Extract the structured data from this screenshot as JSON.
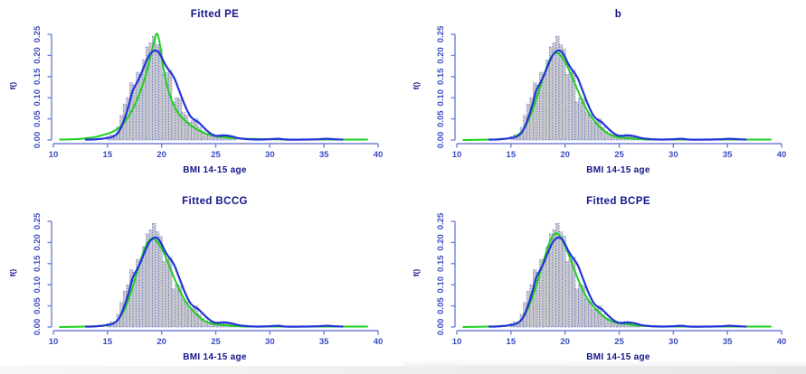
{
  "figure": {
    "background": "#ffffff",
    "colors": {
      "title_text": "#14148c",
      "tick_label": "#3b4cc0",
      "axis_line": "#7080d8",
      "hist_fill": "#c9c9c9",
      "hist_border": "#5565d2",
      "fitted_green": "#1ecf1e",
      "density_blue": "#2433d8"
    }
  },
  "chart_data": {
    "type": "histogram",
    "layout": "2x2-panel-grid",
    "xlabel": "BMI 14-15 age",
    "ylabel": "f()",
    "xlim": [
      10,
      40
    ],
    "ylim": [
      0,
      0.25
    ],
    "grid": "off",
    "legend": "none",
    "x_tick_values": [
      10,
      15,
      20,
      25,
      30,
      35,
      40
    ],
    "x_tick_labels": [
      "10",
      "15",
      "20",
      "25",
      "30",
      "35",
      "40"
    ],
    "y_tick_values": [
      0,
      0.05,
      0.1,
      0.15,
      0.2,
      0.25
    ],
    "y_tick_labels": [
      "0.00",
      "0.05",
      "0.10",
      "0.15",
      "0.20",
      "0.25"
    ],
    "histogram": {
      "note": "shared sample histogram of BMI at age 14-15, gray bars with dotted blue borders",
      "bin_width": 0.3,
      "bins": [
        [
          15.1,
          0.008
        ],
        [
          15.4,
          0.012
        ],
        [
          15.7,
          0.008
        ],
        [
          16.0,
          0.03
        ],
        [
          16.3,
          0.058
        ],
        [
          16.6,
          0.085
        ],
        [
          16.9,
          0.1
        ],
        [
          17.2,
          0.135
        ],
        [
          17.5,
          0.13
        ],
        [
          17.8,
          0.16
        ],
        [
          18.1,
          0.155
        ],
        [
          18.4,
          0.19
        ],
        [
          18.7,
          0.22
        ],
        [
          19.0,
          0.23
        ],
        [
          19.3,
          0.245
        ],
        [
          19.6,
          0.225
        ],
        [
          19.9,
          0.215
        ],
        [
          20.2,
          0.155
        ],
        [
          20.5,
          0.16
        ],
        [
          20.8,
          0.165
        ],
        [
          21.1,
          0.09
        ],
        [
          21.4,
          0.1
        ],
        [
          21.7,
          0.098
        ],
        [
          22.0,
          0.065
        ],
        [
          22.3,
          0.058
        ],
        [
          22.6,
          0.042
        ],
        [
          22.9,
          0.045
        ],
        [
          23.2,
          0.05
        ],
        [
          23.5,
          0.03
        ],
        [
          23.8,
          0.02
        ],
        [
          24.1,
          0.015
        ],
        [
          24.4,
          0.012
        ],
        [
          24.7,
          0.01
        ],
        [
          25.0,
          0.01
        ],
        [
          25.3,
          0.012
        ],
        [
          25.6,
          0.013
        ],
        [
          25.9,
          0.01
        ],
        [
          26.2,
          0.008
        ],
        [
          26.5,
          0.006
        ],
        [
          26.8,
          0.004
        ],
        [
          30.6,
          0.004
        ],
        [
          30.9,
          0.003
        ],
        [
          35.0,
          0.004
        ],
        [
          35.3,
          0.003
        ]
      ]
    },
    "density_blue": {
      "name": "sample density (blue line, shared across panels)",
      "color": "#2433d8",
      "points": [
        [
          13.0,
          0.001
        ],
        [
          13.5,
          0.001
        ],
        [
          14.0,
          0.002
        ],
        [
          14.5,
          0.003
        ],
        [
          15.0,
          0.005
        ],
        [
          15.5,
          0.008
        ],
        [
          16.0,
          0.018
        ],
        [
          16.5,
          0.045
        ],
        [
          17.0,
          0.085
        ],
        [
          17.3,
          0.115
        ],
        [
          17.6,
          0.13
        ],
        [
          18.0,
          0.15
        ],
        [
          18.4,
          0.175
        ],
        [
          18.8,
          0.198
        ],
        [
          19.1,
          0.208
        ],
        [
          19.4,
          0.212
        ],
        [
          19.7,
          0.208
        ],
        [
          20.0,
          0.196
        ],
        [
          20.3,
          0.18
        ],
        [
          20.6,
          0.168
        ],
        [
          20.9,
          0.158
        ],
        [
          21.2,
          0.145
        ],
        [
          21.5,
          0.125
        ],
        [
          21.8,
          0.105
        ],
        [
          22.1,
          0.085
        ],
        [
          22.4,
          0.068
        ],
        [
          22.7,
          0.055
        ],
        [
          23.0,
          0.048
        ],
        [
          23.4,
          0.042
        ],
        [
          23.8,
          0.032
        ],
        [
          24.2,
          0.022
        ],
        [
          24.6,
          0.014
        ],
        [
          25.0,
          0.01
        ],
        [
          25.4,
          0.01
        ],
        [
          25.8,
          0.011
        ],
        [
          26.2,
          0.01
        ],
        [
          26.6,
          0.008
        ],
        [
          27.0,
          0.005
        ],
        [
          27.5,
          0.003
        ],
        [
          28.0,
          0.002
        ],
        [
          29.0,
          0.001
        ],
        [
          30.0,
          0.002
        ],
        [
          30.8,
          0.003
        ],
        [
          31.5,
          0.001
        ],
        [
          33.0,
          0.001
        ],
        [
          34.5,
          0.002
        ],
        [
          35.2,
          0.003
        ],
        [
          36.0,
          0.002
        ],
        [
          36.7,
          0.001
        ]
      ]
    },
    "panels": [
      {
        "title": "Fitted PE",
        "fitted_green": {
          "name": "fitted PE density (green line)",
          "color": "#1ecf1e",
          "points": [
            [
              10.6,
              0.001
            ],
            [
              12.0,
              0.002
            ],
            [
              13.0,
              0.004
            ],
            [
              14.0,
              0.008
            ],
            [
              15.0,
              0.015
            ],
            [
              15.5,
              0.02
            ],
            [
              16.0,
              0.028
            ],
            [
              16.5,
              0.04
            ],
            [
              17.0,
              0.058
            ],
            [
              17.5,
              0.082
            ],
            [
              18.0,
              0.112
            ],
            [
              18.5,
              0.15
            ],
            [
              19.0,
              0.2
            ],
            [
              19.3,
              0.232
            ],
            [
              19.55,
              0.252
            ],
            [
              19.8,
              0.232
            ],
            [
              20.0,
              0.195
            ],
            [
              20.3,
              0.152
            ],
            [
              20.6,
              0.12
            ],
            [
              21.0,
              0.09
            ],
            [
              21.5,
              0.065
            ],
            [
              22.0,
              0.05
            ],
            [
              22.5,
              0.038
            ],
            [
              23.0,
              0.029
            ],
            [
              23.5,
              0.022
            ],
            [
              24.0,
              0.016
            ],
            [
              24.5,
              0.012
            ],
            [
              25.0,
              0.009
            ],
            [
              26.0,
              0.006
            ],
            [
              27.0,
              0.004
            ],
            [
              28.0,
              0.003
            ],
            [
              30.0,
              0.002
            ],
            [
              33.0,
              0.001
            ],
            [
              36.0,
              0.001
            ],
            [
              39.0,
              0.001
            ]
          ]
        }
      },
      {
        "title": "b",
        "fitted_green": {
          "name": "fitted density (green line)",
          "color": "#1ecf1e",
          "points": [
            [
              10.6,
              0.0
            ],
            [
              13.0,
              0.001
            ],
            [
              14.0,
              0.002
            ],
            [
              15.0,
              0.005
            ],
            [
              15.5,
              0.01
            ],
            [
              16.0,
              0.02
            ],
            [
              16.5,
              0.04
            ],
            [
              17.0,
              0.072
            ],
            [
              17.5,
              0.11
            ],
            [
              18.0,
              0.15
            ],
            [
              18.5,
              0.185
            ],
            [
              18.9,
              0.203
            ],
            [
              19.2,
              0.206
            ],
            [
              19.5,
              0.202
            ],
            [
              20.0,
              0.185
            ],
            [
              20.5,
              0.158
            ],
            [
              21.0,
              0.128
            ],
            [
              21.5,
              0.098
            ],
            [
              22.0,
              0.072
            ],
            [
              22.5,
              0.052
            ],
            [
              23.0,
              0.036
            ],
            [
              23.5,
              0.024
            ],
            [
              24.0,
              0.015
            ],
            [
              24.5,
              0.009
            ],
            [
              25.0,
              0.006
            ],
            [
              26.0,
              0.004
            ],
            [
              27.0,
              0.002
            ],
            [
              28.0,
              0.001
            ],
            [
              30.0,
              0.001
            ],
            [
              33.0,
              0.001
            ],
            [
              36.0,
              0.001
            ],
            [
              39.0,
              0.001
            ]
          ]
        }
      },
      {
        "title": "Fitted BCCG",
        "fitted_green": {
          "name": "fitted BCCG density (green line)",
          "color": "#1ecf1e",
          "points": [
            [
              10.6,
              0.0
            ],
            [
              13.0,
              0.001
            ],
            [
              14.0,
              0.002
            ],
            [
              15.0,
              0.004
            ],
            [
              15.5,
              0.008
            ],
            [
              16.0,
              0.018
            ],
            [
              16.5,
              0.038
            ],
            [
              17.0,
              0.07
            ],
            [
              17.5,
              0.11
            ],
            [
              18.0,
              0.152
            ],
            [
              18.5,
              0.19
            ],
            [
              18.9,
              0.206
            ],
            [
              19.2,
              0.209
            ],
            [
              19.5,
              0.204
            ],
            [
              20.0,
              0.186
            ],
            [
              20.5,
              0.158
            ],
            [
              21.0,
              0.126
            ],
            [
              21.5,
              0.096
            ],
            [
              22.0,
              0.07
            ],
            [
              22.5,
              0.05
            ],
            [
              23.0,
              0.035
            ],
            [
              23.5,
              0.023
            ],
            [
              24.0,
              0.014
            ],
            [
              24.5,
              0.009
            ],
            [
              25.0,
              0.006
            ],
            [
              26.0,
              0.004
            ],
            [
              27.0,
              0.002
            ],
            [
              28.0,
              0.001
            ],
            [
              30.0,
              0.001
            ],
            [
              33.0,
              0.001
            ],
            [
              36.0,
              0.001
            ],
            [
              39.0,
              0.001
            ]
          ]
        }
      },
      {
        "title": "Fitted BCPE",
        "fitted_green": {
          "name": "fitted BCPE density (green line)",
          "color": "#1ecf1e",
          "points": [
            [
              10.6,
              0.0
            ],
            [
              13.0,
              0.001
            ],
            [
              14.0,
              0.002
            ],
            [
              15.0,
              0.004
            ],
            [
              15.5,
              0.008
            ],
            [
              16.0,
              0.018
            ],
            [
              16.5,
              0.04
            ],
            [
              17.0,
              0.072
            ],
            [
              17.5,
              0.112
            ],
            [
              18.0,
              0.155
            ],
            [
              18.5,
              0.196
            ],
            [
              18.9,
              0.216
            ],
            [
              19.2,
              0.222
            ],
            [
              19.5,
              0.216
            ],
            [
              20.0,
              0.192
            ],
            [
              20.5,
              0.16
            ],
            [
              21.0,
              0.126
            ],
            [
              21.5,
              0.095
            ],
            [
              22.0,
              0.07
            ],
            [
              22.5,
              0.052
            ],
            [
              23.0,
              0.038
            ],
            [
              23.5,
              0.026
            ],
            [
              24.0,
              0.018
            ],
            [
              24.5,
              0.012
            ],
            [
              25.0,
              0.009
            ],
            [
              26.0,
              0.006
            ],
            [
              27.0,
              0.003
            ],
            [
              28.0,
              0.002
            ],
            [
              30.0,
              0.001
            ],
            [
              33.0,
              0.001
            ],
            [
              36.0,
              0.001
            ],
            [
              39.0,
              0.001
            ]
          ]
        }
      }
    ]
  }
}
